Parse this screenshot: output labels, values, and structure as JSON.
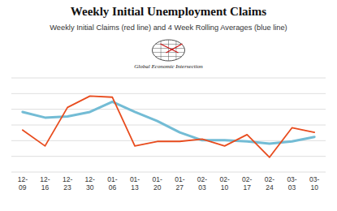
{
  "chart_data": {
    "type": "line",
    "title": "Weekly Initial Unemployment Claims",
    "subtitle": "Weekly Initial Claims (red line) and 4 Week Rolling Averages (blue line)",
    "annotations": [
      {
        "text": "Global Economic Intersection"
      }
    ],
    "categories": [
      "12-\n09",
      "12-\n16",
      "12-\n23",
      "12-\n30",
      "01-\n06",
      "01-\n13",
      "01-\n20",
      "01-\n27",
      "02-\n03",
      "02-\n10",
      "02-\n17",
      "02-\n24",
      "03-\n03",
      "03-\n10"
    ],
    "series": [
      {
        "color": "#73bcd5",
        "values": [
          248,
          243,
          244,
          248,
          257,
          248,
          240,
          230,
          223,
          223,
          222,
          220,
          222,
          226
        ]
      },
      {
        "color": "#e84c1e",
        "values": [
          232,
          218,
          252,
          262,
          261,
          218,
          222,
          222,
          224,
          218,
          228,
          208,
          234,
          230
        ]
      }
    ],
    "ylim": [
      195,
      278
    ],
    "yticks": [
      195,
      208.83333333333334,
      222.66666666666666,
      236.5,
      250.33333333333334,
      264.1666666666667,
      278
    ],
    "grid": true,
    "tick_labels": "x"
  }
}
